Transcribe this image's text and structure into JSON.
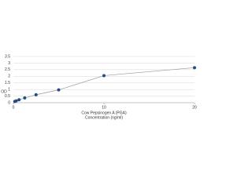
{
  "chart_data": {
    "type": "line",
    "xlabel": [
      "Cow Pepsinogen A (PGA)",
      "Concentration (ng/ml)"
    ],
    "ylabel": "OD",
    "x": [
      0.156,
      0.312,
      0.625,
      1.25,
      2.5,
      5,
      10,
      20
    ],
    "series": [
      {
        "color": "#1f4e8c",
        "values": [
          0.1,
          0.14,
          0.22,
          0.36,
          0.6,
          0.97,
          2.05,
          2.65
        ]
      }
    ],
    "xlim": [
      0,
      20
    ],
    "xticks": [
      0,
      10,
      20
    ],
    "ylim": [
      0,
      3.5
    ],
    "yticks": [
      0,
      0.5,
      1,
      1.5,
      2,
      2.5,
      3,
      3.5
    ],
    "grid": true
  }
}
